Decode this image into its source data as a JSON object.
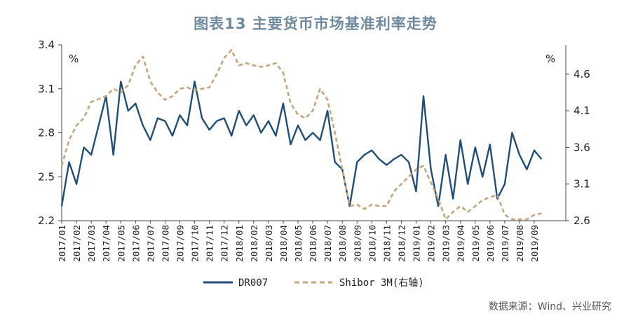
{
  "title": "图表13  主要货币市场基准利率走势",
  "source": "数据来源：Wind、兴业研究",
  "chart_data": {
    "type": "line",
    "y_left": {
      "unit": "%",
      "min": 2.2,
      "max": 3.4,
      "ticks": [
        2.2,
        2.5,
        2.8,
        3.1,
        3.4
      ]
    },
    "y_right": {
      "unit": "%",
      "min": 2.6,
      "max": 5.0,
      "ticks": [
        2.6,
        3.1,
        3.6,
        4.1,
        4.6
      ]
    },
    "x_ticks": [
      "2017/01",
      "2017/02",
      "2017/03",
      "2017/04",
      "2017/05",
      "2017/06",
      "2017/07",
      "2017/08",
      "2017/09",
      "2017/10",
      "2017/11",
      "2017/12",
      "2018/01",
      "2018/02",
      "2018/03",
      "2018/04",
      "2018/05",
      "2018/06",
      "2018/07",
      "2018/08",
      "2018/09",
      "2018/10",
      "2018/11",
      "2018/12",
      "2019/01",
      "2019/02",
      "2019/03",
      "2019/04",
      "2019/05",
      "2019/06",
      "2019/07",
      "2019/08",
      "2019/09"
    ],
    "legend_position": "bottom",
    "series": [
      {
        "name": "DR007",
        "axis": "left",
        "color": "#1f4e79",
        "style": "solid",
        "x": [
          "2017/01",
          "2017/01",
          "2017/02",
          "2017/02",
          "2017/03",
          "2017/03",
          "2017/04",
          "2017/04",
          "2017/05",
          "2017/05",
          "2017/06",
          "2017/06",
          "2017/07",
          "2017/07",
          "2017/08",
          "2017/08",
          "2017/09",
          "2017/09",
          "2017/10",
          "2017/10",
          "2017/11",
          "2017/11",
          "2017/12",
          "2017/12",
          "2018/01",
          "2018/01",
          "2018/02",
          "2018/02",
          "2018/03",
          "2018/03",
          "2018/04",
          "2018/04",
          "2018/05",
          "2018/05",
          "2018/06",
          "2018/06",
          "2018/07",
          "2018/07",
          "2018/08",
          "2018/08",
          "2018/09",
          "2018/09",
          "2018/10",
          "2018/10",
          "2018/11",
          "2018/11",
          "2018/12",
          "2018/12",
          "2019/01",
          "2019/01",
          "2019/02",
          "2019/02",
          "2019/03",
          "2019/03",
          "2019/04",
          "2019/04",
          "2019/05",
          "2019/05",
          "2019/06",
          "2019/06",
          "2019/07",
          "2019/07",
          "2019/08",
          "2019/08",
          "2019/09",
          "2019/09"
        ],
        "values": [
          2.3,
          2.6,
          2.45,
          2.7,
          2.65,
          2.85,
          3.05,
          2.65,
          3.15,
          2.95,
          3.0,
          2.85,
          2.75,
          2.9,
          2.88,
          2.78,
          2.92,
          2.85,
          3.15,
          2.9,
          2.82,
          2.88,
          2.9,
          2.78,
          2.95,
          2.85,
          2.92,
          2.8,
          2.88,
          2.78,
          3.0,
          2.72,
          2.85,
          2.75,
          2.8,
          2.75,
          2.95,
          2.6,
          2.55,
          2.3,
          2.6,
          2.65,
          2.68,
          2.62,
          2.58,
          2.62,
          2.65,
          2.6,
          2.4,
          3.05,
          2.55,
          2.3,
          2.65,
          2.35,
          2.75,
          2.45,
          2.7,
          2.5,
          2.72,
          2.35,
          2.45,
          2.8,
          2.65,
          2.55,
          2.68,
          2.62
        ]
      },
      {
        "name": "Shibor 3M(右轴)",
        "axis": "right",
        "color": "#c5a67e",
        "style": "dashed",
        "x": [
          "2017/01",
          "2017/01",
          "2017/02",
          "2017/02",
          "2017/03",
          "2017/03",
          "2017/04",
          "2017/04",
          "2017/05",
          "2017/05",
          "2017/06",
          "2017/06",
          "2017/07",
          "2017/07",
          "2017/08",
          "2017/08",
          "2017/09",
          "2017/09",
          "2017/10",
          "2017/10",
          "2017/11",
          "2017/11",
          "2017/12",
          "2017/12",
          "2018/01",
          "2018/01",
          "2018/02",
          "2018/02",
          "2018/03",
          "2018/03",
          "2018/04",
          "2018/04",
          "2018/05",
          "2018/05",
          "2018/06",
          "2018/06",
          "2018/07",
          "2018/07",
          "2018/08",
          "2018/08",
          "2018/09",
          "2018/09",
          "2018/10",
          "2018/10",
          "2018/11",
          "2018/11",
          "2018/12",
          "2018/12",
          "2019/01",
          "2019/01",
          "2019/02",
          "2019/02",
          "2019/03",
          "2019/03",
          "2019/04",
          "2019/04",
          "2019/05",
          "2019/05",
          "2019/06",
          "2019/06",
          "2019/07",
          "2019/07",
          "2019/08",
          "2019/08",
          "2019/09",
          "2019/09"
        ],
        "values": [
          3.35,
          3.7,
          3.9,
          4.0,
          4.22,
          4.26,
          4.3,
          4.4,
          4.35,
          4.45,
          4.72,
          4.84,
          4.5,
          4.35,
          4.25,
          4.3,
          4.4,
          4.42,
          4.38,
          4.4,
          4.42,
          4.6,
          4.82,
          4.93,
          4.72,
          4.75,
          4.72,
          4.7,
          4.72,
          4.75,
          4.62,
          4.2,
          4.05,
          4.0,
          4.1,
          4.4,
          4.25,
          3.8,
          3.3,
          2.8,
          2.82,
          2.76,
          2.82,
          2.8,
          2.8,
          3.0,
          3.1,
          3.2,
          3.3,
          3.35,
          3.12,
          2.9,
          2.62,
          2.72,
          2.8,
          2.72,
          2.8,
          2.88,
          2.92,
          2.95,
          2.68,
          2.62,
          2.62,
          2.62,
          2.68,
          2.7
        ]
      }
    ]
  }
}
